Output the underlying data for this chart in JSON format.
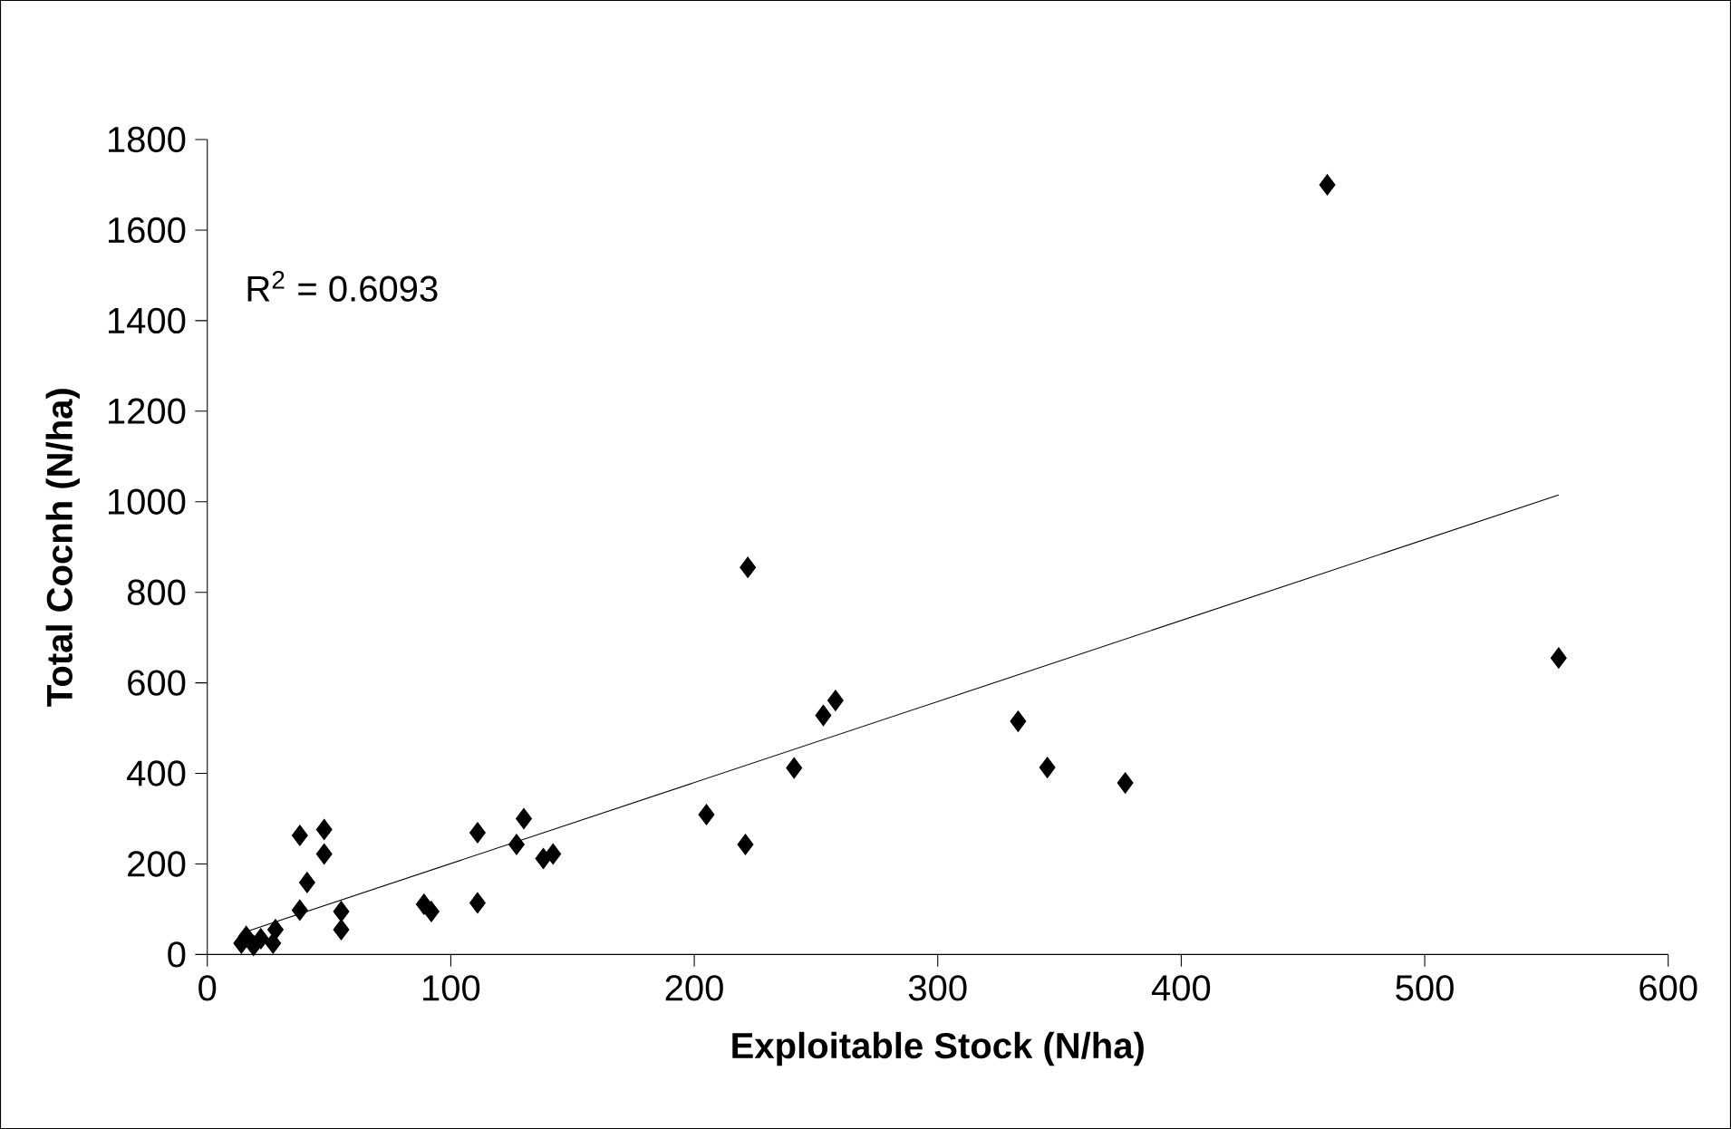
{
  "chart_data": {
    "type": "scatter",
    "xlabel": "Exploitable Stock (N/ha)",
    "ylabel": "Total Cocnh (N/ha)",
    "annotations": [
      "R$^{2}$ = 0.6093"
    ],
    "xlim": [
      0,
      600
    ],
    "xticks": [
      0,
      100,
      200,
      300,
      400,
      500,
      600
    ],
    "ylim": [
      0,
      1800
    ],
    "yticks": [
      0,
      200,
      400,
      600,
      800,
      1000,
      1200,
      1400,
      1600,
      1800
    ],
    "marker": "diamond",
    "series": [
      {
        "color": "#000000",
        "x": [
          14,
          16,
          19,
          22,
          27,
          28,
          38,
          38,
          41,
          48,
          48,
          55,
          55,
          89,
          92,
          111,
          111,
          127,
          130,
          138,
          142,
          205,
          221,
          222,
          241,
          253,
          258,
          333,
          345,
          377,
          460,
          555
        ],
        "values": [
          25,
          40,
          20,
          35,
          25,
          55,
          263,
          98,
          159,
          276,
          222,
          95,
          55,
          111,
          95,
          269,
          114,
          243,
          300,
          212,
          222,
          309,
          243,
          855,
          412,
          528,
          561,
          515,
          413,
          379,
          1700,
          655
        ]
      },
      {
        "type": "line",
        "color": "#000000",
        "marker": "none",
        "x": [
          14,
          555
        ],
        "values": [
          47,
          1015
        ]
      }
    ]
  }
}
